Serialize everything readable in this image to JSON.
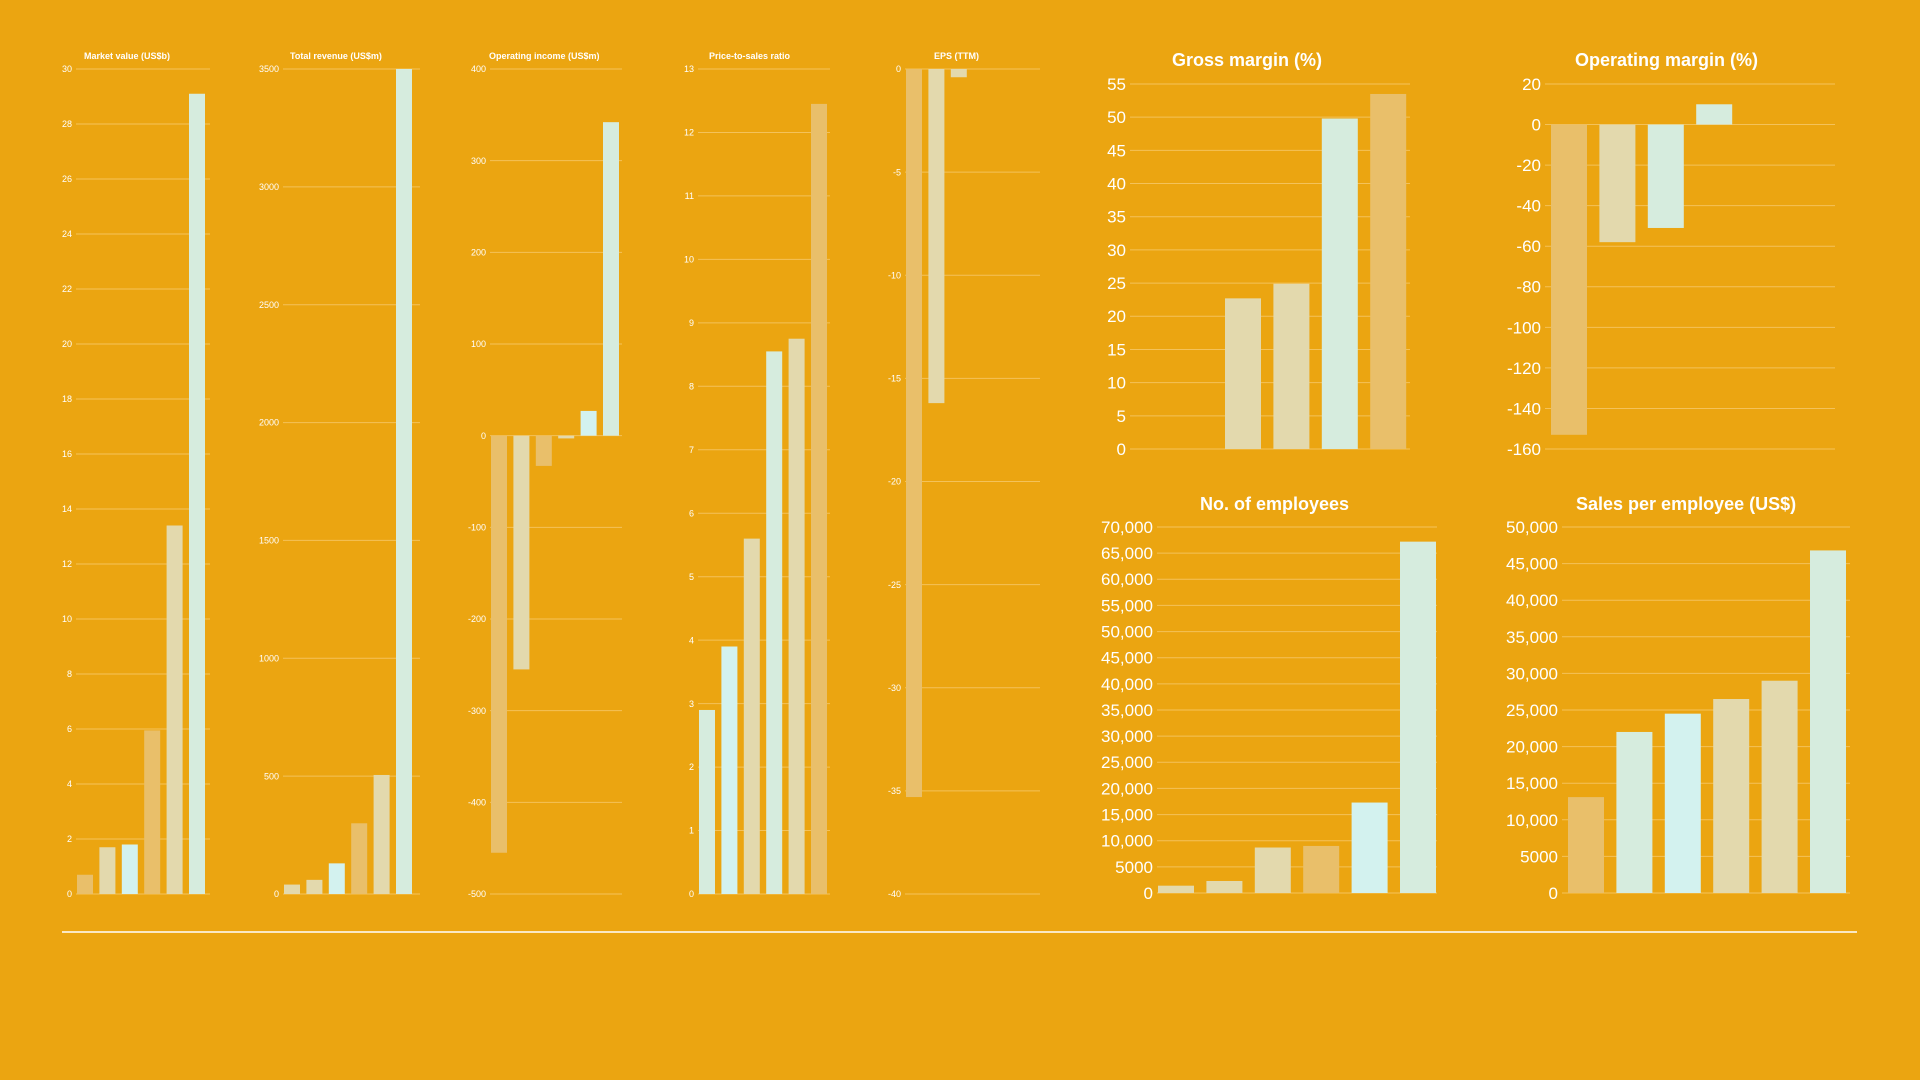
{
  "colors": {
    "background": "#eba511",
    "gridline": "#f4c25a",
    "text": "#ffffff",
    "divider": "#ffffff",
    "bar_palette": [
      "#e9bf6a",
      "#e3d9ad",
      "#d3f2ef",
      "#d6ecde"
    ]
  },
  "chart_data": [
    {
      "type": "bar",
      "title": "Market value (US$b)",
      "ylim": [
        0,
        30
      ],
      "ticks": [
        0,
        2,
        4,
        6,
        8,
        10,
        12,
        14,
        16,
        18,
        20,
        22,
        24,
        26,
        28,
        30
      ],
      "tick_labels": [
        "0",
        "2",
        "4",
        "6",
        "8",
        "10",
        "12",
        "14",
        "16",
        "18",
        "20",
        "22",
        "24",
        "26",
        "28",
        "30"
      ],
      "values": [
        0.7,
        1.7,
        1.8,
        5.95,
        13.4,
        29.1
      ],
      "bar_colors": [
        "#e9bf6a",
        "#e3d9ad",
        "#d3f2ef",
        "#e9bf6a",
        "#e3d9ad",
        "#d6ecde"
      ],
      "grid": true
    },
    {
      "type": "bar",
      "title": "Total revenue (US$m)",
      "ylim": [
        0,
        3500
      ],
      "ticks": [
        0,
        500,
        1000,
        1500,
        2000,
        2500,
        3000,
        3500
      ],
      "tick_labels": [
        "0",
        "500",
        "1000",
        "1500",
        "2000",
        "2500",
        "3000",
        "3500"
      ],
      "values": [
        40,
        60,
        130,
        300,
        505,
        3500
      ],
      "bar_colors": [
        "#e3d9ad",
        "#e3d9ad",
        "#d3f2ef",
        "#e9bf6a",
        "#e3d9ad",
        "#d6ecde"
      ],
      "grid": true
    },
    {
      "type": "bar",
      "title": "Operating income (US$m)",
      "ylim": [
        -500,
        400
      ],
      "ticks": [
        -500,
        -400,
        -300,
        -200,
        -100,
        0,
        100,
        200,
        300,
        400
      ],
      "tick_labels": [
        "-500",
        "-400",
        "-300",
        "-200",
        "-100",
        "0",
        "100",
        "200",
        "300",
        "400"
      ],
      "values": [
        -455,
        -255,
        -33,
        -3,
        27,
        342
      ],
      "bar_colors": [
        "#e9bf6a",
        "#e3d9ad",
        "#e9bf6a",
        "#e3d9ad",
        "#d3f2ef",
        "#d6ecde"
      ],
      "grid": true
    },
    {
      "type": "bar",
      "title": "Price-to-sales ratio",
      "ylim": [
        0,
        13
      ],
      "ticks": [
        0,
        1,
        2,
        3,
        4,
        5,
        6,
        7,
        8,
        9,
        10,
        11,
        12,
        13
      ],
      "tick_labels": [
        "0",
        "1",
        "2",
        "3",
        "4",
        "5",
        "6",
        "7",
        "8",
        "9",
        "10",
        "11",
        "12",
        "13"
      ],
      "values": [
        2.9,
        3.9,
        5.6,
        8.55,
        8.75,
        12.45
      ],
      "bar_colors": [
        "#d6ecde",
        "#d3f2ef",
        "#e3d9ad",
        "#d6ecde",
        "#e3d9ad",
        "#e9bf6a"
      ],
      "grid": true
    },
    {
      "type": "bar",
      "title": "EPS (TTM)",
      "ylim": [
        -40,
        0
      ],
      "ticks": [
        -40,
        -35,
        -30,
        -25,
        -20,
        -15,
        -10,
        -5,
        0
      ],
      "tick_labels": [
        "-40",
        "-35",
        "-30",
        "-25",
        "-20",
        "-15",
        "-10",
        "-5",
        "0"
      ],
      "values": [
        -35.3,
        -16.2,
        -0.4
      ],
      "bar_colors": [
        "#e9bf6a",
        "#e3d9ad",
        "#e3d9ad"
      ],
      "grid": true
    },
    {
      "type": "bar",
      "title": "Gross margin (%)",
      "ylim": [
        0,
        55
      ],
      "ticks": [
        0,
        5,
        10,
        15,
        20,
        25,
        30,
        35,
        40,
        45,
        50,
        55
      ],
      "tick_labels": [
        "0",
        "5",
        "10",
        "15",
        "20",
        "25",
        "30",
        "35",
        "40",
        "45",
        "50",
        "55"
      ],
      "values": [
        22.7,
        24.9,
        49.8,
        53.5
      ],
      "bar_colors": [
        "#e3d9ad",
        "#e3d9ad",
        "#d6ecde",
        "#e9bf6a"
      ],
      "grid": true
    },
    {
      "type": "bar",
      "title": "Operating margin (%)",
      "ylim": [
        -160,
        20
      ],
      "ticks": [
        -160,
        -140,
        -120,
        -100,
        -80,
        -60,
        -40,
        -20,
        0,
        20
      ],
      "tick_labels": [
        "-160",
        "-140",
        "-120",
        "-100",
        "-80",
        "-60",
        "-40",
        "-20",
        "0",
        "20"
      ],
      "values": [
        -153,
        -58,
        -51,
        10
      ],
      "bar_colors": [
        "#e9bf6a",
        "#e3d9ad",
        "#d6ecde",
        "#d6ecde"
      ],
      "grid": true
    },
    {
      "type": "bar",
      "title": "No. of employees",
      "ylim": [
        0,
        70000
      ],
      "ticks": [
        0,
        5000,
        10000,
        15000,
        20000,
        25000,
        30000,
        35000,
        40000,
        45000,
        50000,
        55000,
        60000,
        65000,
        70000
      ],
      "tick_labels": [
        "0",
        "5000",
        "10,000",
        "15,000",
        "20,000",
        "25,000",
        "30,000",
        "35,000",
        "40,000",
        "45,000",
        "50,000",
        "55,000",
        "60,000",
        "65,000",
        "70,000"
      ],
      "values": [
        1400,
        2300,
        8700,
        9000,
        17300,
        67200
      ],
      "bar_colors": [
        "#e3d9ad",
        "#e3d9ad",
        "#e3d9ad",
        "#e9bf6a",
        "#d3f2ef",
        "#d6ecde"
      ],
      "grid": true
    },
    {
      "type": "bar",
      "title": "Sales per employee (US$)",
      "ylim": [
        0,
        50000
      ],
      "ticks": [
        0,
        5000,
        10000,
        15000,
        20000,
        25000,
        30000,
        35000,
        40000,
        45000,
        50000
      ],
      "tick_labels": [
        "0",
        "5000",
        "10,000",
        "15,000",
        "20,000",
        "25,000",
        "30,000",
        "35,000",
        "40,000",
        "45,000",
        "50,000"
      ],
      "values": [
        13100,
        22000,
        24500,
        26500,
        29000,
        46800
      ],
      "bar_colors": [
        "#e9bf6a",
        "#d6ecde",
        "#d3f2ef",
        "#e3d9ad",
        "#e3d9ad",
        "#d6ecde"
      ],
      "grid": true
    }
  ]
}
